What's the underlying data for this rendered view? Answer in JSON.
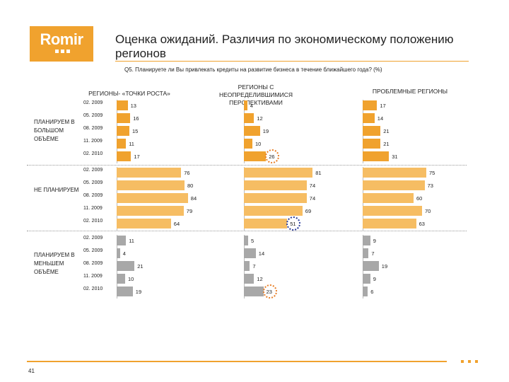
{
  "logo": {
    "text": "Romir"
  },
  "header": {
    "title": "Оценка ожиданий. Различия по экономическому положению регионов",
    "question": "Q5. Планируете ли Вы привлекать кредиты на развитие бизнеса в течение ближайшего года? (%)"
  },
  "page_number": "41",
  "colors": {
    "brand": "#f0a22e",
    "bar_orange": "#f0a22e",
    "bar_light": "#f6bd63",
    "bar_gray": "#a8a8a8",
    "ring_orange": "#e8802a",
    "ring_blue": "#2a3c9a"
  },
  "chart_data": {
    "type": "bar",
    "periods": [
      "02. 2009",
      "05. 2009",
      "08. 2009",
      "11. 2009",
      "02. 2010"
    ],
    "groups": [
      "ПЛАНИРУЕМ В БОЛЬШОМ ОБЪЁМЕ",
      "НЕ ПЛАНИРУЕМ",
      "ПЛАНИРУЕМ В МЕНЬШЕМ ОБЪЁМЕ"
    ],
    "panels": [
      {
        "title": "РЕГИОНЫ- «ТОЧКИ РОСТА»",
        "values": [
          [
            13,
            16,
            15,
            11,
            17
          ],
          [
            76,
            80,
            84,
            79,
            64
          ],
          [
            11,
            4,
            21,
            10,
            19
          ]
        ]
      },
      {
        "title": "РЕГИОНЫ С НЕОПРЕДЕЛИВШИМИСЯ ПЕРСПЕКТИВАМИ",
        "values": [
          [
            4,
            12,
            19,
            10,
            26
          ],
          [
            81,
            74,
            74,
            69,
            51
          ],
          [
            5,
            14,
            7,
            12,
            23
          ]
        ]
      },
      {
        "title": "ПРОБЛЕМНЫЕ РЕГИОНЫ",
        "values": [
          [
            17,
            14,
            21,
            21,
            31
          ],
          [
            75,
            73,
            60,
            70,
            63
          ],
          [
            9,
            7,
            19,
            9,
            6
          ]
        ]
      }
    ],
    "highlights": [
      {
        "panel": 1,
        "group": 0,
        "period": 4,
        "color": "orange"
      },
      {
        "panel": 1,
        "group": 1,
        "period": 4,
        "color": "blue"
      },
      {
        "panel": 1,
        "group": 2,
        "period": 4,
        "color": "orange"
      }
    ]
  }
}
